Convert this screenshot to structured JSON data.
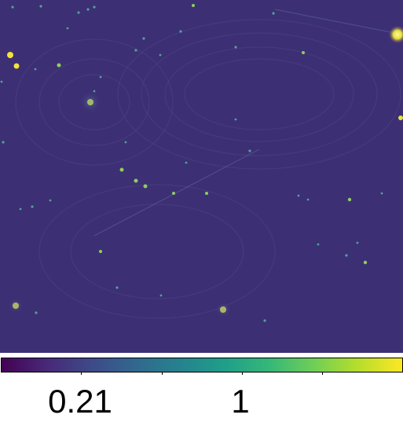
{
  "image": {
    "background_color": "#3d2f74",
    "star_color": "#f2e438",
    "faint_source_color": "#4ea39a",
    "description_icon": "astronomical-sky-image"
  },
  "colorbar": {
    "colormap": "viridis",
    "stops": [
      "#440154",
      "#482878",
      "#3e4989",
      "#31688e",
      "#26828e",
      "#1f9e89",
      "#35b779",
      "#6ece58",
      "#b5de2b",
      "#fde725"
    ],
    "tick_labels": [
      "0.21",
      "1"
    ]
  }
}
